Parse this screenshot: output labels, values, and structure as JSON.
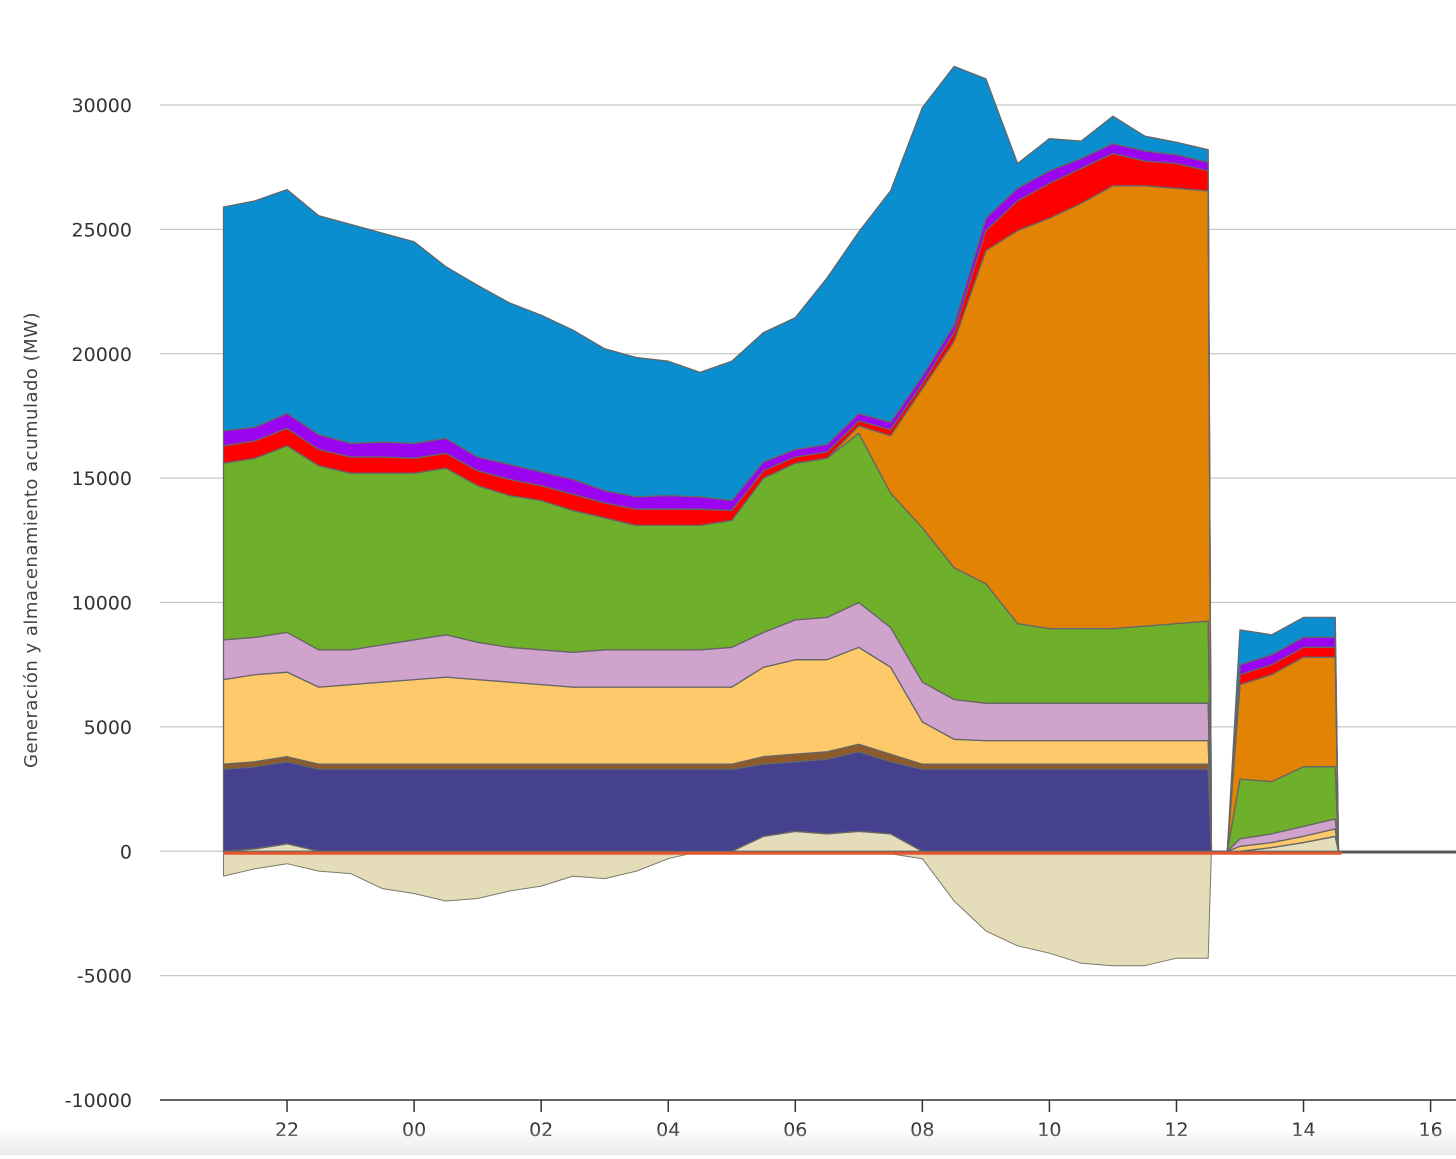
{
  "chart_data": {
    "type": "area",
    "stacked": true,
    "ylabel": "Generación y almacenamiento acumulado (MW)",
    "xlabel": "",
    "title": "",
    "ylim": [
      -10000,
      30000
    ],
    "yticks": [
      30000,
      25000,
      20000,
      15000,
      10000,
      5000,
      0,
      -5000,
      -10000
    ],
    "xlim": [
      -2.0,
      18.4
    ],
    "xticks": [
      {
        "x": 0,
        "label": "22"
      },
      {
        "x": 2,
        "label": "00"
      },
      {
        "x": 4,
        "label": "02"
      },
      {
        "x": 6,
        "label": "04"
      },
      {
        "x": 8,
        "label": "06"
      },
      {
        "x": 10,
        "label": "08"
      },
      {
        "x": 12,
        "label": "10"
      },
      {
        "x": 14,
        "label": "12"
      },
      {
        "x": 16,
        "label": "14"
      },
      {
        "x": 18,
        "label": "16"
      }
    ],
    "grid": true,
    "legend": "none",
    "x": [
      -1.0,
      -0.5,
      0.0,
      0.5,
      1.0,
      1.5,
      2.0,
      2.5,
      3.0,
      3.5,
      4.0,
      4.5,
      5.0,
      5.5,
      6.0,
      6.5,
      7.0,
      7.5,
      8.0,
      8.5,
      9.0,
      9.5,
      10.0,
      10.5,
      11.0,
      11.5,
      12.0,
      12.5,
      13.0,
      13.5,
      14.0,
      14.5,
      14.55,
      14.8,
      15.0,
      15.5,
      16.0,
      16.5,
      16.55,
      16.65,
      17.0,
      18.0,
      18.4
    ],
    "negative_series": [
      {
        "name": "",
        "color": "#e5ddb9",
        "values": [
          -1000,
          -700,
          -500,
          -800,
          -900,
          -1500,
          -1700,
          -2000,
          -1900,
          -1600,
          -1400,
          -1000,
          -1100,
          -800,
          -300,
          0,
          0,
          0,
          0,
          0,
          0,
          -100,
          -300,
          -2000,
          -3200,
          -3800,
          -4100,
          -4500,
          -4600,
          -4600,
          -4300,
          -4300,
          0,
          0,
          0,
          0,
          0,
          0,
          0,
          0,
          0,
          0,
          0
        ]
      }
    ],
    "series": [
      {
        "name": "",
        "color": "#e5ddb9",
        "values": [
          0,
          100,
          300,
          0,
          0,
          0,
          0,
          0,
          0,
          0,
          0,
          0,
          0,
          0,
          0,
          0,
          0,
          600,
          800,
          700,
          800,
          700,
          0,
          0,
          0,
          0,
          0,
          0,
          0,
          0,
          0,
          0,
          0,
          0,
          0,
          150,
          350,
          600,
          0,
          0,
          0,
          0,
          0
        ]
      },
      {
        "name": "",
        "color": "#45418e",
        "values": [
          3300,
          3300,
          3300,
          3300,
          3300,
          3300,
          3300,
          3300,
          3300,
          3300,
          3300,
          3300,
          3300,
          3300,
          3300,
          3300,
          3300,
          2900,
          2800,
          3000,
          3200,
          2900,
          3300,
          3300,
          3300,
          3300,
          3300,
          3300,
          3300,
          3300,
          3300,
          3300,
          0,
          0,
          0,
          0,
          0,
          0,
          0,
          0,
          0,
          0,
          0
        ]
      },
      {
        "name": "",
        "color": "#8f5a2a",
        "values": [
          200,
          200,
          200,
          200,
          200,
          200,
          200,
          200,
          200,
          200,
          200,
          200,
          200,
          200,
          200,
          200,
          200,
          300,
          300,
          300,
          300,
          300,
          200,
          200,
          200,
          200,
          200,
          200,
          200,
          200,
          200,
          200,
          0,
          0,
          0,
          0,
          0,
          0,
          0,
          0,
          0,
          0,
          0
        ]
      },
      {
        "name": "",
        "color": "#fdc96a",
        "values": [
          3400,
          3500,
          3400,
          3100,
          3200,
          3300,
          3400,
          3500,
          3400,
          3300,
          3200,
          3100,
          3100,
          3100,
          3100,
          3100,
          3100,
          3600,
          3800,
          3700,
          3900,
          3500,
          1700,
          1000,
          950,
          950,
          950,
          950,
          950,
          950,
          950,
          950,
          0,
          0,
          200,
          200,
          250,
          300,
          0,
          0,
          0,
          0,
          0
        ]
      },
      {
        "name": "",
        "color": "#cfa3cb",
        "values": [
          1600,
          1500,
          1600,
          1500,
          1400,
          1500,
          1600,
          1700,
          1500,
          1400,
          1400,
          1400,
          1500,
          1500,
          1500,
          1500,
          1600,
          1400,
          1600,
          1700,
          1800,
          1600,
          1600,
          1600,
          1500,
          1500,
          1500,
          1500,
          1500,
          1500,
          1500,
          1500,
          0,
          0,
          300,
          350,
          400,
          400,
          0,
          0,
          0,
          0,
          0
        ]
      },
      {
        "name": "",
        "color": "#6fb02a",
        "values": [
          7100,
          7200,
          7500,
          7400,
          7100,
          6900,
          6700,
          6700,
          6300,
          6100,
          6000,
          5700,
          5300,
          5000,
          5000,
          5000,
          5100,
          6200,
          6300,
          6400,
          6800,
          5400,
          6200,
          5300,
          4800,
          3200,
          3000,
          3000,
          3000,
          3100,
          3200,
          3300,
          0,
          0,
          2400,
          2100,
          2400,
          2100,
          0,
          0,
          0,
          0,
          0
        ]
      },
      {
        "name": "",
        "color": "#e28303",
        "values": [
          0,
          0,
          0,
          0,
          0,
          0,
          0,
          0,
          0,
          0,
          0,
          0,
          0,
          0,
          0,
          0,
          0,
          0,
          0,
          0,
          300,
          2300,
          5600,
          9100,
          13400,
          15800,
          16500,
          17100,
          17800,
          17700,
          17500,
          17300,
          0,
          0,
          3800,
          4300,
          4400,
          4400,
          0,
          0,
          0,
          0,
          0
        ]
      },
      {
        "name": "",
        "color": "#ff0000",
        "values": [
          700,
          700,
          700,
          650,
          650,
          650,
          600,
          600,
          600,
          650,
          600,
          650,
          600,
          650,
          650,
          650,
          400,
          300,
          250,
          250,
          200,
          250,
          200,
          350,
          800,
          1200,
          1400,
          1400,
          1300,
          1000,
          1000,
          800,
          0,
          0,
          400,
          400,
          400,
          400,
          0,
          0,
          0,
          0,
          0
        ]
      },
      {
        "name": "",
        "color": "#9a04f0",
        "values": [
          600,
          550,
          600,
          600,
          550,
          600,
          600,
          600,
          550,
          600,
          550,
          600,
          500,
          500,
          550,
          500,
          400,
          350,
          300,
          300,
          300,
          300,
          300,
          300,
          500,
          500,
          500,
          400,
          400,
          400,
          350,
          350,
          0,
          0,
          400,
          400,
          400,
          400,
          0,
          0,
          0,
          0,
          0
        ]
      },
      {
        "name": "",
        "color": "#0a8ecf",
        "values": [
          9000,
          9100,
          9000,
          8800,
          8800,
          8400,
          8100,
          6900,
          6900,
          6500,
          6300,
          6000,
          5700,
          5600,
          5400,
          5000,
          5600,
          5200,
          5300,
          6700,
          7300,
          9300,
          10800,
          10400,
          5600,
          1000,
          1300,
          700,
          1100,
          600,
          500,
          500,
          0,
          0,
          1400,
          800,
          800,
          800,
          0,
          0,
          0,
          0,
          0
        ]
      }
    ]
  }
}
